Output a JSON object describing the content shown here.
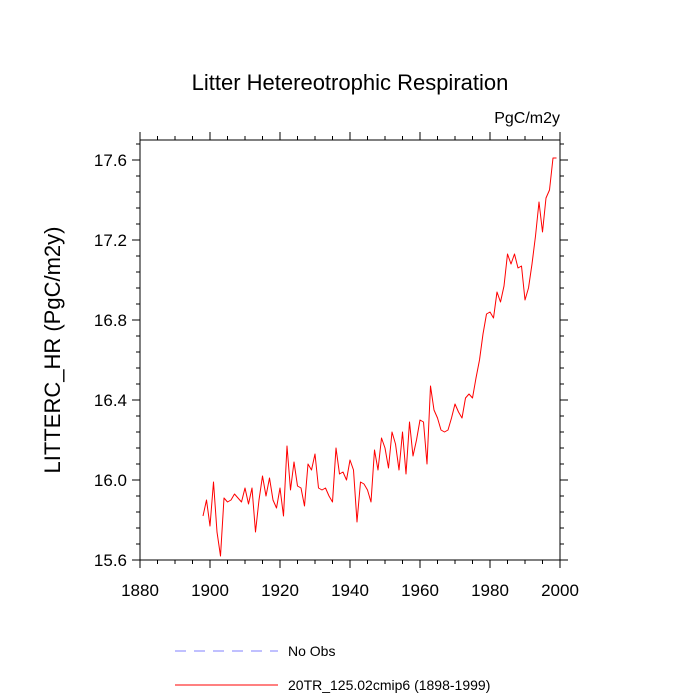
{
  "chart_data": {
    "type": "line",
    "title": "Litter Hetereotrophic Respiration",
    "units": "PgC/m2y",
    "ylabel": "LITTERC_HR  (PgC/m2y)",
    "xlabel": "",
    "xlim": [
      1880,
      2000
    ],
    "ylim": [
      15.6,
      17.7
    ],
    "xticks": [
      1880,
      1900,
      1920,
      1940,
      1960,
      1980,
      2000
    ],
    "yticks": [
      15.6,
      16.0,
      16.4,
      16.8,
      17.2,
      17.6
    ],
    "xtick_labels": [
      "1880",
      "1900",
      "1920",
      "1940",
      "1960",
      "1980",
      "2000"
    ],
    "ytick_labels": [
      "15.6",
      "16.0",
      "16.4",
      "16.8",
      "17.2",
      "17.6"
    ],
    "legend": [
      {
        "label": "No Obs",
        "color": "#8080ff",
        "style": "dashed"
      },
      {
        "label": "20TR_125.02cmip6 (1898-1999)",
        "color": "#ff0000",
        "style": "solid"
      }
    ],
    "series": [
      {
        "name": "20TR_125.02cmip6 (1898-1999)",
        "color": "#ff0000",
        "x": [
          1898,
          1899,
          1900,
          1901,
          1902,
          1903,
          1904,
          1905,
          1906,
          1907,
          1908,
          1909,
          1910,
          1911,
          1912,
          1913,
          1914,
          1915,
          1916,
          1917,
          1918,
          1919,
          1920,
          1921,
          1922,
          1923,
          1924,
          1925,
          1926,
          1927,
          1928,
          1929,
          1930,
          1931,
          1932,
          1933,
          1934,
          1935,
          1936,
          1937,
          1938,
          1939,
          1940,
          1941,
          1942,
          1943,
          1944,
          1945,
          1946,
          1947,
          1948,
          1949,
          1950,
          1951,
          1952,
          1953,
          1954,
          1955,
          1956,
          1957,
          1958,
          1959,
          1960,
          1961,
          1962,
          1963,
          1964,
          1965,
          1966,
          1967,
          1968,
          1969,
          1970,
          1971,
          1972,
          1973,
          1974,
          1975,
          1976,
          1977,
          1978,
          1979,
          1980,
          1981,
          1982,
          1983,
          1984,
          1985,
          1986,
          1987,
          1988,
          1989,
          1990,
          1991,
          1992,
          1993,
          1994,
          1995,
          1996,
          1997,
          1998,
          1999
        ],
        "values": [
          15.82,
          15.9,
          15.77,
          15.99,
          15.74,
          15.62,
          15.91,
          15.89,
          15.9,
          15.93,
          15.91,
          15.89,
          15.96,
          15.88,
          15.96,
          15.74,
          15.9,
          16.02,
          15.92,
          16.01,
          15.9,
          15.86,
          15.96,
          15.82,
          16.17,
          15.95,
          16.09,
          15.97,
          15.96,
          15.87,
          16.08,
          16.05,
          16.13,
          15.96,
          15.95,
          15.96,
          15.92,
          15.89,
          16.16,
          16.03,
          16.04,
          16.0,
          16.1,
          16.05,
          15.79,
          15.99,
          15.98,
          15.95,
          15.89,
          16.15,
          16.05,
          16.21,
          16.16,
          16.06,
          16.24,
          16.18,
          16.05,
          16.24,
          16.03,
          16.29,
          16.12,
          16.2,
          16.3,
          16.29,
          16.08,
          16.47,
          16.35,
          16.31,
          16.25,
          16.24,
          16.25,
          16.31,
          16.38,
          16.34,
          16.31,
          16.41,
          16.43,
          16.41,
          16.51,
          16.6,
          16.73,
          16.83,
          16.84,
          16.81,
          16.94,
          16.89,
          16.97,
          17.13,
          17.08,
          17.13,
          17.06,
          17.07,
          16.9,
          16.96,
          17.08,
          17.22,
          17.39,
          17.24,
          17.41,
          17.45,
          17.61,
          17.61
        ]
      }
    ]
  }
}
